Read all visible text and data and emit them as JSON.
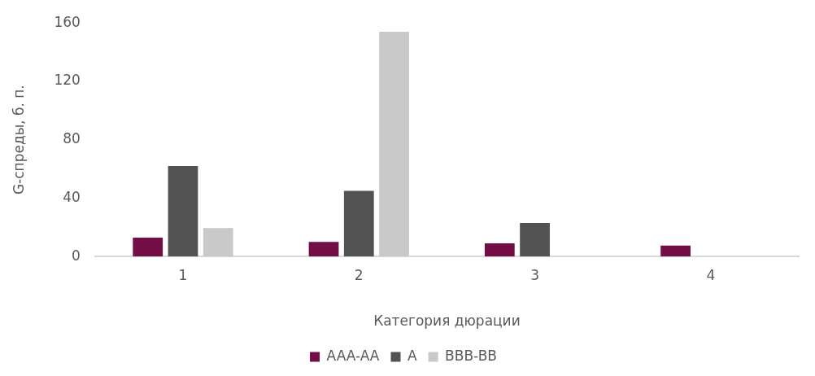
{
  "chart_data": {
    "type": "bar",
    "xlabel": "Категория дюрации",
    "ylabel": "G-спреды, б. п.",
    "categories": [
      "1",
      "2",
      "3",
      "4"
    ],
    "series": [
      {
        "name": "AAA-AA",
        "color": "#720e45",
        "values": [
          13,
          10,
          9,
          7.5
        ]
      },
      {
        "name": "A",
        "color": "#525252",
        "values": [
          62,
          45,
          23,
          null
        ]
      },
      {
        "name": "BBB-BB",
        "color": "#c9c9c9",
        "values": [
          19.5,
          154,
          null,
          null
        ]
      }
    ],
    "ylim": [
      0,
      160
    ],
    "yticks": [
      0,
      40,
      80,
      120,
      160
    ],
    "grid": false,
    "legend": "bottom"
  }
}
